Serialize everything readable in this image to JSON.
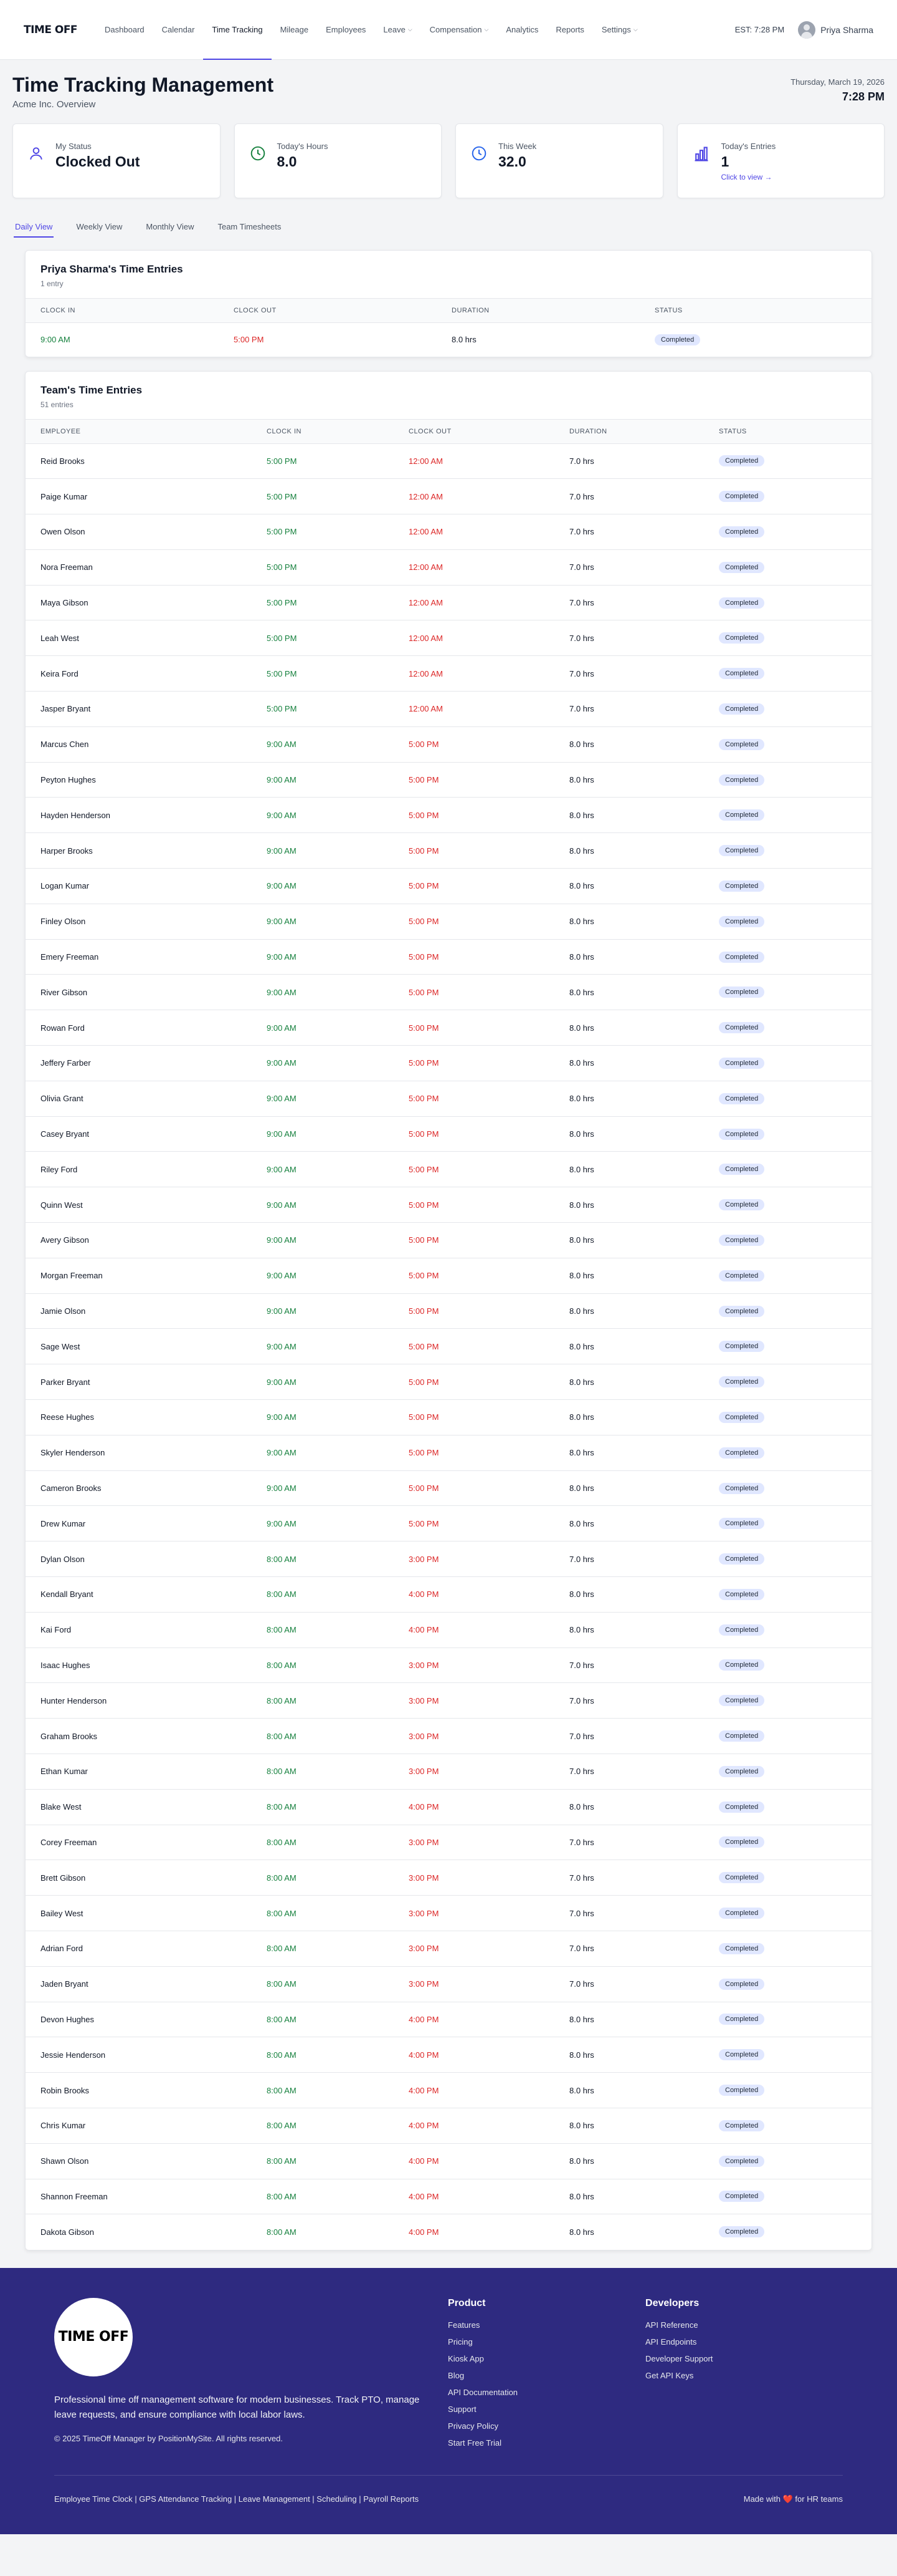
{
  "brand": {
    "logo_text": "TIME OFF"
  },
  "nav": {
    "items": [
      {
        "label": "Dashboard",
        "dropdown": false
      },
      {
        "label": "Calendar",
        "dropdown": false
      },
      {
        "label": "Time Tracking",
        "dropdown": false,
        "active": true
      },
      {
        "label": "Mileage",
        "dropdown": false
      },
      {
        "label": "Employees",
        "dropdown": false
      },
      {
        "label": "Leave",
        "dropdown": true
      },
      {
        "label": "Compensation",
        "dropdown": true
      },
      {
        "label": "Analytics",
        "dropdown": false
      },
      {
        "label": "Reports",
        "dropdown": false
      },
      {
        "label": "Settings",
        "dropdown": true
      }
    ],
    "clock": "EST: 7:28 PM",
    "user_name": "Priya Sharma"
  },
  "page": {
    "title": "Time Tracking Management",
    "subtitle": "Acme Inc. Overview",
    "date": "Thursday, March 19, 2026",
    "time": "7:28 PM"
  },
  "stats": [
    {
      "icon": "user-icon",
      "label": "My Status",
      "value": "Clocked Out"
    },
    {
      "icon": "clock-icon",
      "label": "Today's Hours",
      "value": "8.0",
      "color": "#15803d"
    },
    {
      "icon": "clock-icon",
      "label": "This Week",
      "value": "32.0",
      "color": "#2563eb"
    },
    {
      "icon": "bar-chart-icon",
      "label": "Today's Entries",
      "value": "1",
      "link": "Click to view →"
    }
  ],
  "tabs": [
    "Daily View",
    "Weekly View",
    "Monthly View",
    "Team Timesheets"
  ],
  "my_entries": {
    "title": "Priya Sharma's Time Entries",
    "count": "1 entry",
    "columns": [
      "CLOCK IN",
      "CLOCK OUT",
      "DURATION",
      "STATUS"
    ],
    "rows": [
      {
        "in": "9:00 AM",
        "out": "5:00 PM",
        "duration": "8.0 hrs",
        "status": "Completed"
      }
    ]
  },
  "team_entries": {
    "title": "Team's Time Entries",
    "count": "51 entries",
    "columns": [
      "EMPLOYEE",
      "CLOCK IN",
      "CLOCK OUT",
      "DURATION",
      "STATUS"
    ],
    "rows": [
      {
        "name": "Reid Brooks",
        "in": "5:00 PM",
        "out": "12:00 AM",
        "duration": "7.0 hrs",
        "status": "Completed"
      },
      {
        "name": "Paige Kumar",
        "in": "5:00 PM",
        "out": "12:00 AM",
        "duration": "7.0 hrs",
        "status": "Completed"
      },
      {
        "name": "Owen Olson",
        "in": "5:00 PM",
        "out": "12:00 AM",
        "duration": "7.0 hrs",
        "status": "Completed"
      },
      {
        "name": "Nora Freeman",
        "in": "5:00 PM",
        "out": "12:00 AM",
        "duration": "7.0 hrs",
        "status": "Completed"
      },
      {
        "name": "Maya Gibson",
        "in": "5:00 PM",
        "out": "12:00 AM",
        "duration": "7.0 hrs",
        "status": "Completed"
      },
      {
        "name": "Leah West",
        "in": "5:00 PM",
        "out": "12:00 AM",
        "duration": "7.0 hrs",
        "status": "Completed"
      },
      {
        "name": "Keira Ford",
        "in": "5:00 PM",
        "out": "12:00 AM",
        "duration": "7.0 hrs",
        "status": "Completed"
      },
      {
        "name": "Jasper Bryant",
        "in": "5:00 PM",
        "out": "12:00 AM",
        "duration": "7.0 hrs",
        "status": "Completed"
      },
      {
        "name": "Marcus Chen",
        "in": "9:00 AM",
        "out": "5:00 PM",
        "duration": "8.0 hrs",
        "status": "Completed"
      },
      {
        "name": "Peyton Hughes",
        "in": "9:00 AM",
        "out": "5:00 PM",
        "duration": "8.0 hrs",
        "status": "Completed"
      },
      {
        "name": "Hayden Henderson",
        "in": "9:00 AM",
        "out": "5:00 PM",
        "duration": "8.0 hrs",
        "status": "Completed"
      },
      {
        "name": "Harper Brooks",
        "in": "9:00 AM",
        "out": "5:00 PM",
        "duration": "8.0 hrs",
        "status": "Completed"
      },
      {
        "name": "Logan Kumar",
        "in": "9:00 AM",
        "out": "5:00 PM",
        "duration": "8.0 hrs",
        "status": "Completed"
      },
      {
        "name": "Finley Olson",
        "in": "9:00 AM",
        "out": "5:00 PM",
        "duration": "8.0 hrs",
        "status": "Completed"
      },
      {
        "name": "Emery Freeman",
        "in": "9:00 AM",
        "out": "5:00 PM",
        "duration": "8.0 hrs",
        "status": "Completed"
      },
      {
        "name": "River Gibson",
        "in": "9:00 AM",
        "out": "5:00 PM",
        "duration": "8.0 hrs",
        "status": "Completed"
      },
      {
        "name": "Rowan Ford",
        "in": "9:00 AM",
        "out": "5:00 PM",
        "duration": "8.0 hrs",
        "status": "Completed"
      },
      {
        "name": "Jeffery Farber",
        "in": "9:00 AM",
        "out": "5:00 PM",
        "duration": "8.0 hrs",
        "status": "Completed"
      },
      {
        "name": "Olivia Grant",
        "in": "9:00 AM",
        "out": "5:00 PM",
        "duration": "8.0 hrs",
        "status": "Completed"
      },
      {
        "name": "Casey Bryant",
        "in": "9:00 AM",
        "out": "5:00 PM",
        "duration": "8.0 hrs",
        "status": "Completed"
      },
      {
        "name": "Riley Ford",
        "in": "9:00 AM",
        "out": "5:00 PM",
        "duration": "8.0 hrs",
        "status": "Completed"
      },
      {
        "name": "Quinn West",
        "in": "9:00 AM",
        "out": "5:00 PM",
        "duration": "8.0 hrs",
        "status": "Completed"
      },
      {
        "name": "Avery Gibson",
        "in": "9:00 AM",
        "out": "5:00 PM",
        "duration": "8.0 hrs",
        "status": "Completed"
      },
      {
        "name": "Morgan Freeman",
        "in": "9:00 AM",
        "out": "5:00 PM",
        "duration": "8.0 hrs",
        "status": "Completed"
      },
      {
        "name": "Jamie Olson",
        "in": "9:00 AM",
        "out": "5:00 PM",
        "duration": "8.0 hrs",
        "status": "Completed"
      },
      {
        "name": "Sage West",
        "in": "9:00 AM",
        "out": "5:00 PM",
        "duration": "8.0 hrs",
        "status": "Completed"
      },
      {
        "name": "Parker Bryant",
        "in": "9:00 AM",
        "out": "5:00 PM",
        "duration": "8.0 hrs",
        "status": "Completed"
      },
      {
        "name": "Reese Hughes",
        "in": "9:00 AM",
        "out": "5:00 PM",
        "duration": "8.0 hrs",
        "status": "Completed"
      },
      {
        "name": "Skyler Henderson",
        "in": "9:00 AM",
        "out": "5:00 PM",
        "duration": "8.0 hrs",
        "status": "Completed"
      },
      {
        "name": "Cameron Brooks",
        "in": "9:00 AM",
        "out": "5:00 PM",
        "duration": "8.0 hrs",
        "status": "Completed"
      },
      {
        "name": "Drew Kumar",
        "in": "9:00 AM",
        "out": "5:00 PM",
        "duration": "8.0 hrs",
        "status": "Completed"
      },
      {
        "name": "Dylan Olson",
        "in": "8:00 AM",
        "out": "3:00 PM",
        "duration": "7.0 hrs",
        "status": "Completed"
      },
      {
        "name": "Kendall Bryant",
        "in": "8:00 AM",
        "out": "4:00 PM",
        "duration": "8.0 hrs",
        "status": "Completed"
      },
      {
        "name": "Kai Ford",
        "in": "8:00 AM",
        "out": "4:00 PM",
        "duration": "8.0 hrs",
        "status": "Completed"
      },
      {
        "name": "Isaac Hughes",
        "in": "8:00 AM",
        "out": "3:00 PM",
        "duration": "7.0 hrs",
        "status": "Completed"
      },
      {
        "name": "Hunter Henderson",
        "in": "8:00 AM",
        "out": "3:00 PM",
        "duration": "7.0 hrs",
        "status": "Completed"
      },
      {
        "name": "Graham Brooks",
        "in": "8:00 AM",
        "out": "3:00 PM",
        "duration": "7.0 hrs",
        "status": "Completed"
      },
      {
        "name": "Ethan Kumar",
        "in": "8:00 AM",
        "out": "3:00 PM",
        "duration": "7.0 hrs",
        "status": "Completed"
      },
      {
        "name": "Blake West",
        "in": "8:00 AM",
        "out": "4:00 PM",
        "duration": "8.0 hrs",
        "status": "Completed"
      },
      {
        "name": "Corey Freeman",
        "in": "8:00 AM",
        "out": "3:00 PM",
        "duration": "7.0 hrs",
        "status": "Completed"
      },
      {
        "name": "Brett Gibson",
        "in": "8:00 AM",
        "out": "3:00 PM",
        "duration": "7.0 hrs",
        "status": "Completed"
      },
      {
        "name": "Bailey West",
        "in": "8:00 AM",
        "out": "3:00 PM",
        "duration": "7.0 hrs",
        "status": "Completed"
      },
      {
        "name": "Adrian Ford",
        "in": "8:00 AM",
        "out": "3:00 PM",
        "duration": "7.0 hrs",
        "status": "Completed"
      },
      {
        "name": "Jaden Bryant",
        "in": "8:00 AM",
        "out": "3:00 PM",
        "duration": "7.0 hrs",
        "status": "Completed"
      },
      {
        "name": "Devon Hughes",
        "in": "8:00 AM",
        "out": "4:00 PM",
        "duration": "8.0 hrs",
        "status": "Completed"
      },
      {
        "name": "Jessie Henderson",
        "in": "8:00 AM",
        "out": "4:00 PM",
        "duration": "8.0 hrs",
        "status": "Completed"
      },
      {
        "name": "Robin Brooks",
        "in": "8:00 AM",
        "out": "4:00 PM",
        "duration": "8.0 hrs",
        "status": "Completed"
      },
      {
        "name": "Chris Kumar",
        "in": "8:00 AM",
        "out": "4:00 PM",
        "duration": "8.0 hrs",
        "status": "Completed"
      },
      {
        "name": "Shawn Olson",
        "in": "8:00 AM",
        "out": "4:00 PM",
        "duration": "8.0 hrs",
        "status": "Completed"
      },
      {
        "name": "Shannon Freeman",
        "in": "8:00 AM",
        "out": "4:00 PM",
        "duration": "8.0 hrs",
        "status": "Completed"
      },
      {
        "name": "Dakota Gibson",
        "in": "8:00 AM",
        "out": "4:00 PM",
        "duration": "8.0 hrs",
        "status": "Completed"
      }
    ]
  },
  "footer": {
    "logo_text": "TIME OFF",
    "description": "Professional time off management software for modern businesses. Track PTO, manage leave requests, and ensure compliance with local labor laws.",
    "copyright": "© 2025 TimeOff Manager by PositionMySite. All rights reserved.",
    "product_title": "Product",
    "product_links": [
      "Features",
      "Pricing",
      "Kiosk App",
      "Blog",
      "API Documentation",
      "Support",
      "Privacy Policy",
      "Start Free Trial"
    ],
    "dev_title": "Developers",
    "dev_links": [
      "API Reference",
      "API Endpoints",
      "Developer Support",
      "Get API Keys"
    ],
    "bottom_links": "Employee Time Clock | GPS Attendance Tracking | Leave Management | Scheduling | Payroll Reports",
    "made_with_prefix": "Made with",
    "made_with_suffix": "for HR teams"
  }
}
